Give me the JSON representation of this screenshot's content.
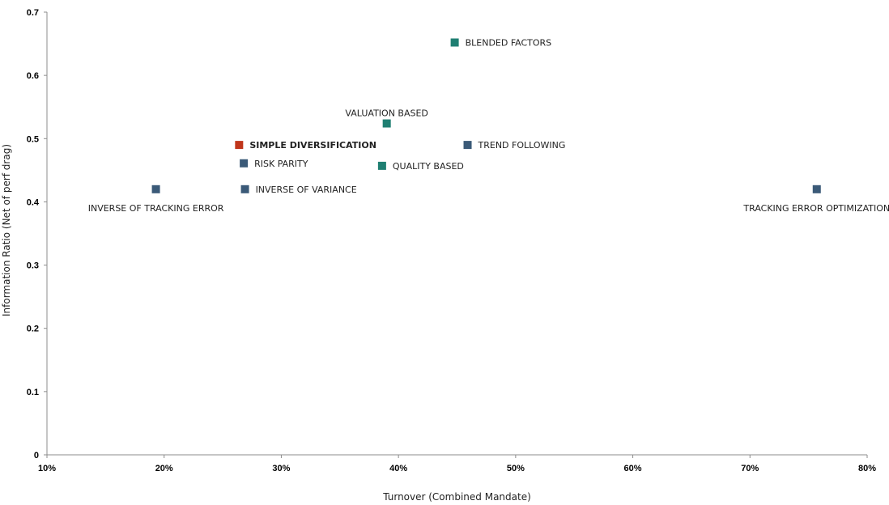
{
  "chart_data": {
    "type": "scatter",
    "title": "",
    "xlabel": "Turnover (Combined Mandate)",
    "ylabel": "Information Ratio (Net of perf drag)",
    "xlim": [
      0.1,
      0.8
    ],
    "ylim": [
      0,
      0.7
    ],
    "x_ticks": [
      0.1,
      0.2,
      0.3,
      0.4,
      0.5,
      0.6,
      0.7,
      0.8
    ],
    "x_tick_labels": [
      "10%",
      "20%",
      "30%",
      "40%",
      "50%",
      "60%",
      "70%",
      "80%"
    ],
    "y_ticks": [
      0,
      0.1,
      0.2,
      0.3,
      0.4,
      0.5,
      0.6,
      0.7
    ],
    "y_tick_labels": [
      "0",
      "0.1",
      "0.2",
      "0.3",
      "0.4",
      "0.5",
      "0.6",
      "0.7"
    ],
    "grid": false,
    "legend": "none",
    "points": [
      {
        "label": "BLENDED FACTORS",
        "x": 0.448,
        "y": 0.652,
        "color": "#1f7f72",
        "label_pos": "right"
      },
      {
        "label": "VALUATION BASED",
        "x": 0.39,
        "y": 0.524,
        "color": "#1f7f72",
        "label_pos": "above"
      },
      {
        "label": "SIMPLE DIVERSIFICATION",
        "x": 0.264,
        "y": 0.49,
        "color": "#c0361b",
        "label_pos": "right",
        "bold": true
      },
      {
        "label": "TREND FOLLOWING",
        "x": 0.459,
        "y": 0.49,
        "color": "#3b5a78",
        "label_pos": "right"
      },
      {
        "label": "RISK PARITY",
        "x": 0.268,
        "y": 0.461,
        "color": "#3b5a78",
        "label_pos": "right"
      },
      {
        "label": "QUALITY BASED",
        "x": 0.386,
        "y": 0.457,
        "color": "#1f7f72",
        "label_pos": "right"
      },
      {
        "label": "INVERSE OF TRACKING ERROR",
        "x": 0.193,
        "y": 0.42,
        "color": "#3b5a78",
        "label_pos": "below"
      },
      {
        "label": "INVERSE OF VARIANCE",
        "x": 0.269,
        "y": 0.42,
        "color": "#3b5a78",
        "label_pos": "right"
      },
      {
        "label": "TRACKING ERROR OPTIMIZATION",
        "x": 0.757,
        "y": 0.42,
        "color": "#3b5a78",
        "label_pos": "below"
      }
    ]
  }
}
